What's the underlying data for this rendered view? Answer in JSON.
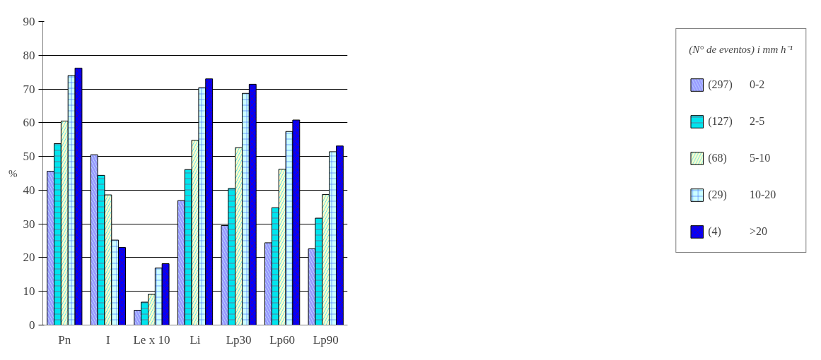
{
  "chart_data": {
    "type": "bar",
    "ylabel": "%",
    "legend_title": "(N° de eventos) i mm h⁻¹",
    "categories": [
      "Pn",
      "I",
      "Le x 10",
      "Li",
      "Lp30",
      "Lp60",
      "Lp90"
    ],
    "series": [
      {
        "name": "(297)      0-2",
        "color": "#9999ff",
        "values": [
          45.6,
          50.5,
          4.4,
          36.9,
          29.5,
          24.4,
          22.6
        ]
      },
      {
        "name": "(127)      2-5",
        "color": "#00e5ee",
        "values": [
          53.8,
          44.4,
          6.8,
          46.1,
          40.5,
          34.8,
          31.7
        ]
      },
      {
        "name": "(68)        5-10",
        "color": "#ffffcc",
        "values": [
          60.5,
          38.6,
          9.1,
          54.8,
          52.6,
          46.2,
          38.7
        ]
      },
      {
        "name": "(29)        10-20",
        "color": "#ccffff",
        "values": [
          74,
          25.2,
          16.9,
          70.4,
          68.7,
          57.4,
          51.4
        ]
      },
      {
        "name": "(4)          >20",
        "color": "#0000ff",
        "values": [
          76.2,
          23,
          18.2,
          73,
          71.4,
          60.8,
          53.1
        ]
      }
    ],
    "ylim": [
      0,
      90
    ],
    "yticks": [
      0,
      10,
      20,
      30,
      40,
      50,
      60,
      70,
      80,
      90
    ],
    "grid": "y",
    "legend": "right"
  }
}
